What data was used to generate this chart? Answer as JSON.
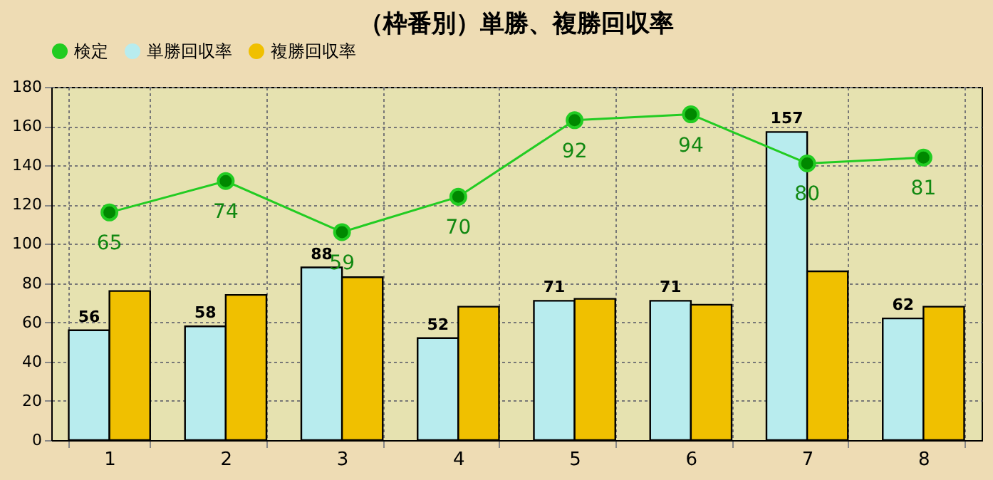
{
  "chart_data": {
    "type": "bar",
    "title": "（枠番別）単勝、複勝回収率",
    "categories": [
      "1",
      "2",
      "3",
      "4",
      "5",
      "6",
      "7",
      "8"
    ],
    "series": [
      {
        "name": "検定",
        "type": "line",
        "color": "#22cc22",
        "marker": "circle",
        "values": [
          116,
          132,
          106,
          124,
          163,
          166,
          141,
          144
        ]
      },
      {
        "name": "単勝回収率",
        "color": "#b8ecee",
        "values": [
          56,
          58,
          88,
          52,
          71,
          71,
          157,
          62
        ],
        "value_labels": [
          "56",
          "58",
          "88",
          "52",
          "71",
          "71",
          "157",
          "62"
        ]
      },
      {
        "name": "複勝回収率",
        "color": "#f0c000",
        "values": [
          76,
          74,
          83,
          68,
          72,
          69,
          86,
          68
        ]
      }
    ],
    "ylim": [
      0,
      180
    ],
    "yticks": [
      0,
      20,
      40,
      60,
      80,
      100,
      120,
      140,
      160,
      180
    ],
    "annotations": [
      {
        "text": "65",
        "x": "1",
        "y": 116
      },
      {
        "text": "74",
        "x": "2",
        "y": 132
      },
      {
        "text": "59",
        "x": "3",
        "y": 106
      },
      {
        "text": "70",
        "x": "4",
        "y": 124
      },
      {
        "text": "92",
        "x": "5",
        "y": 163
      },
      {
        "text": "94",
        "x": "6",
        "y": 166
      },
      {
        "text": "80",
        "x": "7",
        "y": 141
      },
      {
        "text": "81",
        "x": "8",
        "y": 144
      }
    ],
    "grid": true,
    "legend": "top"
  }
}
